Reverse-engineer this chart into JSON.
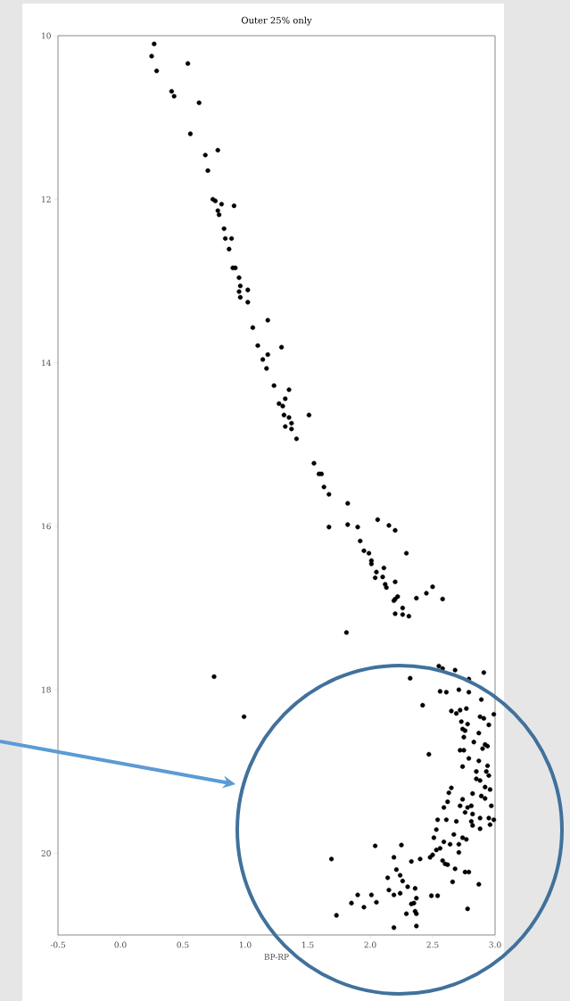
{
  "chart_data": {
    "type": "scatter",
    "title": "Outer 25% only",
    "xlabel": "BP-RP",
    "xlim": [
      -0.5,
      3.0
    ],
    "ylim": [
      21,
      10
    ],
    "xticks": [
      -0.5,
      {
        "value": 0,
        "label": "0.0"
      },
      0.5,
      {
        "value": 1,
        "label": "1.0"
      },
      1.5,
      {
        "value": 2,
        "label": "2.0"
      },
      2.5,
      {
        "value": 3,
        "label": "3.0"
      }
    ],
    "yticks": [
      10,
      12,
      14,
      16,
      18,
      20
    ],
    "marker": "circle",
    "color": "#000000",
    "x": [
      0.27,
      0.25,
      0.54,
      0.29,
      0.41,
      0.43,
      0.63,
      0.56,
      0.78,
      0.68,
      0.7,
      0.74,
      0.76,
      0.81,
      0.91,
      0.78,
      0.79,
      0.83,
      0.84,
      0.89,
      0.87,
      0.9,
      0.92,
      0.95,
      0.96,
      1.02,
      0.95,
      0.96,
      1.02,
      1.18,
      1.06,
      1.1,
      1.29,
      1.18,
      1.14,
      1.17,
      1.23,
      1.35,
      1.32,
      1.27,
      1.3,
      1.31,
      1.51,
      1.35,
      1.37,
      1.32,
      1.37,
      1.41,
      1.55,
      1.59,
      1.61,
      1.63,
      1.67,
      1.82,
      2.06,
      1.67,
      1.82,
      1.9,
      2.15,
      2.2,
      1.92,
      1.95,
      1.99,
      2.29,
      2.01,
      2.01,
      2.11,
      2.05,
      2.1,
      2.04,
      2.2,
      2.12,
      2.13,
      2.5,
      2.45,
      2.22,
      2.2,
      2.37,
      2.58,
      2.19,
      2.26,
      2.2,
      2.26,
      2.31,
      1.81,
      0.75,
      0.99,
      2.55,
      2.58,
      2.68,
      2.91,
      2.32,
      2.79,
      2.56,
      2.61,
      2.71,
      2.79,
      2.89,
      2.42,
      2.65,
      2.69,
      2.72,
      2.77,
      2.99,
      2.88,
      2.91,
      2.73,
      2.78,
      2.95,
      2.74,
      2.76,
      2.87,
      2.75,
      2.83,
      2.92,
      2.94,
      2.72,
      2.75,
      2.9,
      2.47,
      2.79,
      2.87,
      2.74,
      2.94,
      2.85,
      2.93,
      2.95,
      2.85,
      2.88,
      2.65,
      2.63,
      2.92,
      2.96,
      2.82,
      2.89,
      2.92,
      2.74,
      2.62,
      2.72,
      2.78,
      2.59,
      2.97,
      2.81,
      2.76,
      2.82,
      2.88,
      2.95,
      2.99,
      2.81,
      2.54,
      2.61,
      2.69,
      2.82,
      2.88,
      2.96,
      2.53,
      2.51,
      2.67,
      2.74,
      2.77,
      2.59,
      2.71,
      2.64,
      2.56,
      2.53,
      2.5,
      2.48,
      2.71,
      2.04,
      2.25,
      1.69,
      2.19,
      2.33,
      2.4,
      2.58,
      2.6,
      2.62,
      2.68,
      2.21,
      2.76,
      2.79,
      2.24,
      2.14,
      2.26,
      2.66,
      2.87,
      2.3,
      2.36,
      2.15,
      2.24,
      2.19,
      1.9,
      2.01,
      2.49,
      2.54,
      2.37,
      1.85,
      2.05,
      2.33,
      2.35,
      1.95,
      2.78,
      2.36,
      2.29,
      2.37,
      1.73,
      2.37,
      2.19
    ],
    "values": [
      10.1,
      10.25,
      10.34,
      10.43,
      10.68,
      10.74,
      10.82,
      11.2,
      11.4,
      11.46,
      11.65,
      12.0,
      12.02,
      12.06,
      12.08,
      12.14,
      12.19,
      12.36,
      12.48,
      12.48,
      12.61,
      12.84,
      12.84,
      12.96,
      13.06,
      13.11,
      13.13,
      13.2,
      13.26,
      13.48,
      13.57,
      13.79,
      13.81,
      13.9,
      13.96,
      14.07,
      14.28,
      14.33,
      14.44,
      14.5,
      14.53,
      14.64,
      14.64,
      14.67,
      14.74,
      14.78,
      14.81,
      14.93,
      15.23,
      15.36,
      15.36,
      15.52,
      15.61,
      15.72,
      15.92,
      16.01,
      15.98,
      16.01,
      15.99,
      16.05,
      16.18,
      16.3,
      16.33,
      16.33,
      16.42,
      16.46,
      16.51,
      16.56,
      16.62,
      16.63,
      16.68,
      16.71,
      16.75,
      16.74,
      16.82,
      16.86,
      16.89,
      16.88,
      16.89,
      16.91,
      17.0,
      17.07,
      17.08,
      17.1,
      17.3,
      17.84,
      18.33,
      17.71,
      17.74,
      17.76,
      17.79,
      17.86,
      17.87,
      18.02,
      18.03,
      18.0,
      18.03,
      18.12,
      18.19,
      18.26,
      18.29,
      18.25,
      18.23,
      18.3,
      18.33,
      18.35,
      18.39,
      18.42,
      18.43,
      18.48,
      18.5,
      18.53,
      18.58,
      18.64,
      18.67,
      18.69,
      18.74,
      18.74,
      18.72,
      18.79,
      18.84,
      18.87,
      18.94,
      18.93,
      19.0,
      19.0,
      19.05,
      19.09,
      19.11,
      19.2,
      19.26,
      19.19,
      19.22,
      19.27,
      19.3,
      19.33,
      19.34,
      19.37,
      19.42,
      19.44,
      19.44,
      19.42,
      19.42,
      19.5,
      19.52,
      19.57,
      19.57,
      19.59,
      19.61,
      19.59,
      19.59,
      19.61,
      19.66,
      19.7,
      19.65,
      19.71,
      19.81,
      19.77,
      19.81,
      19.83,
      19.86,
      19.89,
      19.89,
      19.94,
      19.96,
      20.02,
      20.05,
      19.99,
      19.91,
      19.9,
      20.07,
      20.05,
      20.1,
      20.07,
      20.09,
      20.13,
      20.14,
      20.19,
      20.2,
      20.23,
      20.23,
      20.27,
      20.3,
      20.34,
      20.35,
      20.38,
      20.41,
      20.43,
      20.45,
      20.49,
      20.51,
      20.51,
      20.51,
      20.52,
      20.52,
      20.55,
      20.61,
      20.6,
      20.62,
      20.61,
      20.66,
      20.68,
      20.71,
      20.74,
      20.74,
      20.76,
      20.89,
      20.91
    ]
  }
}
